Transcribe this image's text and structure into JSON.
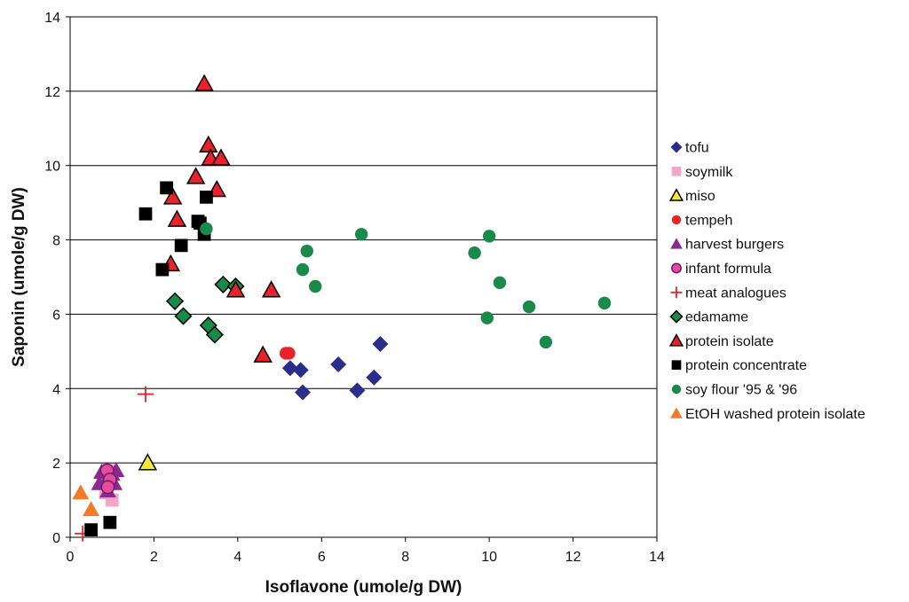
{
  "chart_data": {
    "type": "scatter",
    "xlabel": "Isoflavone (umole/g DW)",
    "ylabel": "Saponin (umole/g DW)",
    "xlim": [
      0,
      14
    ],
    "ylim": [
      0,
      14
    ],
    "x_ticks": [
      "0",
      "2",
      "4",
      "6",
      "8",
      "10",
      "12",
      "14"
    ],
    "y_ticks": [
      "0",
      "2",
      "4",
      "6",
      "8",
      "10",
      "12",
      "14"
    ],
    "grid": "horizontal",
    "legend_position": "right",
    "series": [
      {
        "name": "tofu",
        "marker": "diamond",
        "color": "#2b2d8a",
        "stroke": "none",
        "points": [
          [
            5.25,
            4.55
          ],
          [
            5.5,
            4.5
          ],
          [
            5.55,
            3.9
          ],
          [
            6.4,
            4.65
          ],
          [
            6.85,
            3.95
          ],
          [
            7.25,
            4.3
          ],
          [
            7.4,
            5.2
          ]
        ]
      },
      {
        "name": "soymilk",
        "marker": "square",
        "color": "#f4a6c8",
        "stroke": "none",
        "points": [
          [
            1.0,
            1.0
          ],
          [
            0.85,
            1.2
          ],
          [
            0.9,
            1.8
          ]
        ]
      },
      {
        "name": "miso",
        "marker": "triangle",
        "color": "#f2ea3a",
        "stroke": "#000000",
        "points": [
          [
            1.85,
            2.0
          ]
        ]
      },
      {
        "name": "tempeh",
        "marker": "circle",
        "color": "#e8222a",
        "stroke": "none",
        "points": [
          [
            5.15,
            4.95
          ],
          [
            5.22,
            4.95
          ]
        ]
      },
      {
        "name": "harvest burgers",
        "marker": "triangle",
        "color": "#8b2a8d",
        "stroke": "none",
        "points": [
          [
            0.7,
            1.45
          ],
          [
            0.75,
            1.75
          ],
          [
            0.85,
            1.5
          ],
          [
            0.9,
            1.25
          ],
          [
            0.95,
            1.55
          ],
          [
            1.0,
            1.7
          ],
          [
            1.05,
            1.45
          ],
          [
            1.1,
            1.8
          ]
        ]
      },
      {
        "name": "infant formula",
        "marker": "circle",
        "color": "#e54b9b",
        "stroke": "#6b1a74",
        "points": [
          [
            0.88,
            1.8
          ],
          [
            0.95,
            1.55
          ],
          [
            0.9,
            1.35
          ]
        ]
      },
      {
        "name": "meat analogues",
        "marker": "plus",
        "color": "#e8222a",
        "stroke": "none",
        "points": [
          [
            1.8,
            3.85
          ],
          [
            0.3,
            0.1
          ]
        ]
      },
      {
        "name": "edamame",
        "marker": "diamond",
        "color": "#1a8a4a",
        "stroke": "#000000",
        "points": [
          [
            2.5,
            6.35
          ],
          [
            2.7,
            5.95
          ],
          [
            3.3,
            5.7
          ],
          [
            3.45,
            5.45
          ],
          [
            3.65,
            6.8
          ],
          [
            3.95,
            6.75
          ]
        ]
      },
      {
        "name": "protein isolate",
        "marker": "triangle",
        "color": "#e8222a",
        "stroke": "#000000",
        "points": [
          [
            3.2,
            12.2
          ],
          [
            3.3,
            10.55
          ],
          [
            3.35,
            10.2
          ],
          [
            3.6,
            10.2
          ],
          [
            3.0,
            9.7
          ],
          [
            3.5,
            9.35
          ],
          [
            2.45,
            9.15
          ],
          [
            2.55,
            8.55
          ],
          [
            2.4,
            7.35
          ],
          [
            3.95,
            6.65
          ],
          [
            4.8,
            6.65
          ],
          [
            4.6,
            4.9
          ]
        ]
      },
      {
        "name": "protein concentrate",
        "marker": "square",
        "color": "#000000",
        "stroke": "none",
        "points": [
          [
            1.8,
            8.7
          ],
          [
            2.3,
            9.4
          ],
          [
            3.25,
            9.15
          ],
          [
            3.05,
            8.5
          ],
          [
            3.1,
            8.45
          ],
          [
            3.2,
            8.15
          ],
          [
            2.65,
            7.85
          ],
          [
            2.2,
            7.2
          ],
          [
            0.5,
            0.2
          ],
          [
            0.95,
            0.4
          ]
        ]
      },
      {
        "name": "soy flour '95 & '96",
        "marker": "circle",
        "color": "#1a8a4a",
        "stroke": "none",
        "points": [
          [
            3.25,
            8.3
          ],
          [
            5.65,
            7.7
          ],
          [
            5.55,
            7.2
          ],
          [
            5.85,
            6.75
          ],
          [
            6.95,
            8.15
          ],
          [
            9.65,
            7.65
          ],
          [
            10.0,
            8.1
          ],
          [
            10.25,
            6.85
          ],
          [
            10.95,
            6.2
          ],
          [
            9.95,
            5.9
          ],
          [
            11.35,
            5.25
          ],
          [
            12.75,
            6.3
          ]
        ]
      },
      {
        "name": "EtOH washed protein isolate",
        "marker": "triangle",
        "color": "#f07c2a",
        "stroke": "none",
        "points": [
          [
            0.25,
            1.2
          ],
          [
            0.5,
            0.75
          ]
        ]
      }
    ]
  }
}
